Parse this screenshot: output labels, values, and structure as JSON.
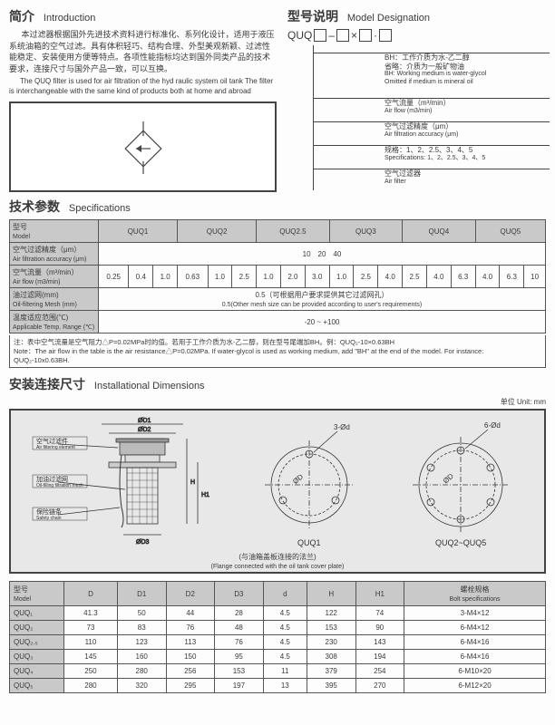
{
  "intro": {
    "title_cn": "简介",
    "title_en": "Introduction",
    "text_cn": "本过滤器根据国外先进技术资料进行标准化、系列化设计，适用于液压系统油箱的空气过滤。具有体积轻巧、结构合理、外型美观新颖、过滤性能稳定、安装使用方便等特点。各项性能指标均达到国外同类产品的技术要求，连接尺寸与国外产品一致，可以互换。",
    "text_en": "The QUQ filter is used for air filtration of the hyd raulic system oil tank The filter is interchangeable with the same kind of products both at home and abroad"
  },
  "modelDesig": {
    "title_cn": "型号说明",
    "title_en": "Model Designation",
    "prefix": "QUQ",
    "items": [
      {
        "cn": "BH：工作介质为水-乙二醇\n省略：介质为一般矿物油",
        "en": "BH: Working medium is water-glycol\nOmitted if medium is mineral oil"
      },
      {
        "cn": "空气流量（m³/min）",
        "en": "Air flow (m3/min)"
      },
      {
        "cn": "空气过滤精度（μm）",
        "en": "Air filtration accuracy (μm)"
      },
      {
        "cn": "规格：1、2、2.5、3、4、5",
        "en": "Specifications: 1、2、2.5、3、4、5"
      },
      {
        "cn": "空气过滤器",
        "en": "Air filter"
      }
    ]
  },
  "specs": {
    "title_cn": "技术参数",
    "title_en": "Specifications",
    "headers": [
      "QUQ1",
      "QUQ2",
      "QUQ2.5",
      "QUQ3",
      "QUQ4",
      "QUQ5"
    ],
    "row_labels": [
      {
        "cn": "型号",
        "en": "Model"
      },
      {
        "cn": "空气过滤精度（μm）",
        "en": "Air filtration accuracy (μm)"
      },
      {
        "cn": "空气流量（m³/min）",
        "en": "Air flow (m3/min)"
      },
      {
        "cn": "油过滤网(mm)",
        "en": "Oil-filtering Mesh (mm)"
      },
      {
        "cn": "温度适应范围(℃)",
        "en": "Applicable Temp. Range (℃)"
      }
    ],
    "accuracy": "10　20　40",
    "flow": [
      "0.25",
      "0.4",
      "1.0",
      "0.63",
      "1.0",
      "2.5",
      "1.0",
      "2.0",
      "3.0",
      "1.0",
      "2.5",
      "4.0",
      "2.5",
      "4.0",
      "6.3",
      "4.0",
      "6.3",
      "10"
    ],
    "mesh_cn": "0.5（可根据用户要求提供其它过滤网孔）",
    "mesh_en": "0.5(Other mesh size can be provided according to user's requirements)",
    "temp": "-20 ~ +100",
    "note_cn": "注：表中空气流量是空气阻力△P=0.02MPa时的值。若用于工作介质为水-乙二醇，则在型号尾端加BH。例：QUQ₂-10×0.63BH",
    "note_en": "Note：The air flow in the table is the air resistance△P=0.02MPa. If water-glycol is used as working medium, add \"BH\" at the end of the model. For instance: QUQ₂-10x0.63BH."
  },
  "install": {
    "title_cn": "安装连接尺寸",
    "title_en": "Installational Dimensions",
    "unit": "单位 Unit: mm",
    "labels": {
      "air_filt_cn": "空气过滤件",
      "air_filt_en": "Air filtering element",
      "oil_filt_cn": "加油过滤网",
      "oil_filt_en": "Oil-filling filtration mesh",
      "chain_cn": "保险链条",
      "chain_en": "Safety chain",
      "d1": "ØD1",
      "d2": "ØD2",
      "d3": "ØD3",
      "h": "H",
      "h1": "H1",
      "holes3": "3-Ød",
      "holes6": "6-Ød",
      "dia": "ØD",
      "quq1": "QUQ1",
      "quq25": "QUQ2~QUQ5",
      "flange_cn": "(与油箱盖板连接的法兰)",
      "flange_en": "(Flange connected with the oil tank cover plate)"
    }
  },
  "dims": {
    "headers_cn": "型号",
    "headers_en": "Model",
    "cols": [
      "D",
      "D1",
      "D2",
      "D3",
      "d",
      "H",
      "H1"
    ],
    "bolt_cn": "螺栓规格",
    "bolt_en": "Bolt specifications",
    "rows": [
      {
        "m": "QUQ₁",
        "D": "41.3",
        "D1": "50",
        "D2": "44",
        "D3": "28",
        "d": "4.5",
        "H": "122",
        "H1": "74",
        "bolt": "3-M4×12"
      },
      {
        "m": "QUQ₂",
        "D": "73",
        "D1": "83",
        "D2": "76",
        "D3": "48",
        "d": "4.5",
        "H": "153",
        "H1": "90",
        "bolt": "6-M4×12"
      },
      {
        "m": "QUQ₂.₅",
        "D": "110",
        "D1": "123",
        "D2": "113",
        "D3": "76",
        "d": "4.5",
        "H": "230",
        "H1": "143",
        "bolt": "6-M4×16"
      },
      {
        "m": "QUQ₃",
        "D": "145",
        "D1": "160",
        "D2": "150",
        "D3": "95",
        "d": "4.5",
        "H": "308",
        "H1": "194",
        "bolt": "6-M4×16"
      },
      {
        "m": "QUQ₄",
        "D": "250",
        "D1": "280",
        "D2": "256",
        "D3": "153",
        "d": "11",
        "H": "379",
        "H1": "254",
        "bolt": "6-M10×20"
      },
      {
        "m": "QUQ₅",
        "D": "280",
        "D1": "320",
        "D2": "295",
        "D3": "197",
        "d": "13",
        "H": "395",
        "H1": "270",
        "bolt": "6-M12×20"
      }
    ]
  },
  "colors": {
    "border": "#444",
    "bg_grey": "#c9c9c9",
    "diagram_bg": "#e8e8e8"
  }
}
